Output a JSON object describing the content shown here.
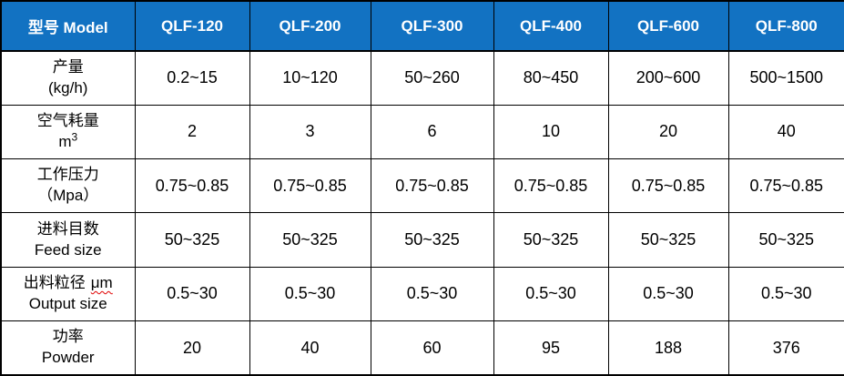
{
  "table": {
    "header": {
      "label": "型号 Model",
      "columns": [
        "QLF-120",
        "QLF-200",
        "QLF-300",
        "QLF-400",
        "QLF-600",
        "QLF-800"
      ]
    },
    "rows": [
      {
        "l1": "产量",
        "l2": "(kg/h)",
        "values": [
          "0.2~15",
          "10~120",
          "50~260",
          "80~450",
          "200~600",
          "500~1500"
        ]
      },
      {
        "l1": "空气耗量",
        "l2": "m",
        "l2_sup": "3",
        "values": [
          "2",
          "3",
          "6",
          "10",
          "20",
          "40"
        ]
      },
      {
        "l1": "工作压力",
        "l2": "（Mpa）",
        "values": [
          "0.75~0.85",
          "0.75~0.85",
          "0.75~0.85",
          "0.75~0.85",
          "0.75~0.85",
          "0.75~0.85"
        ]
      },
      {
        "l1": "进料目数",
        "l2": "Feed size",
        "values": [
          "50~325",
          "50~325",
          "50~325",
          "50~325",
          "50~325",
          "50~325"
        ]
      },
      {
        "l1": "出料粒径",
        "l1_suffix": "μm",
        "l2": "Output size",
        "values": [
          "0.5~30",
          "0.5~30",
          "0.5~30",
          "0.5~30",
          "0.5~30",
          "0.5~30"
        ]
      },
      {
        "l1": "功率",
        "l2": "Powder",
        "values": [
          "20",
          "40",
          "60",
          "95",
          "188",
          "376"
        ]
      }
    ],
    "colors": {
      "header_bg": "#1272c2",
      "header_text": "#ffffff",
      "border": "#000000",
      "body_text": "#000000",
      "squiggle": "#e00000"
    }
  }
}
